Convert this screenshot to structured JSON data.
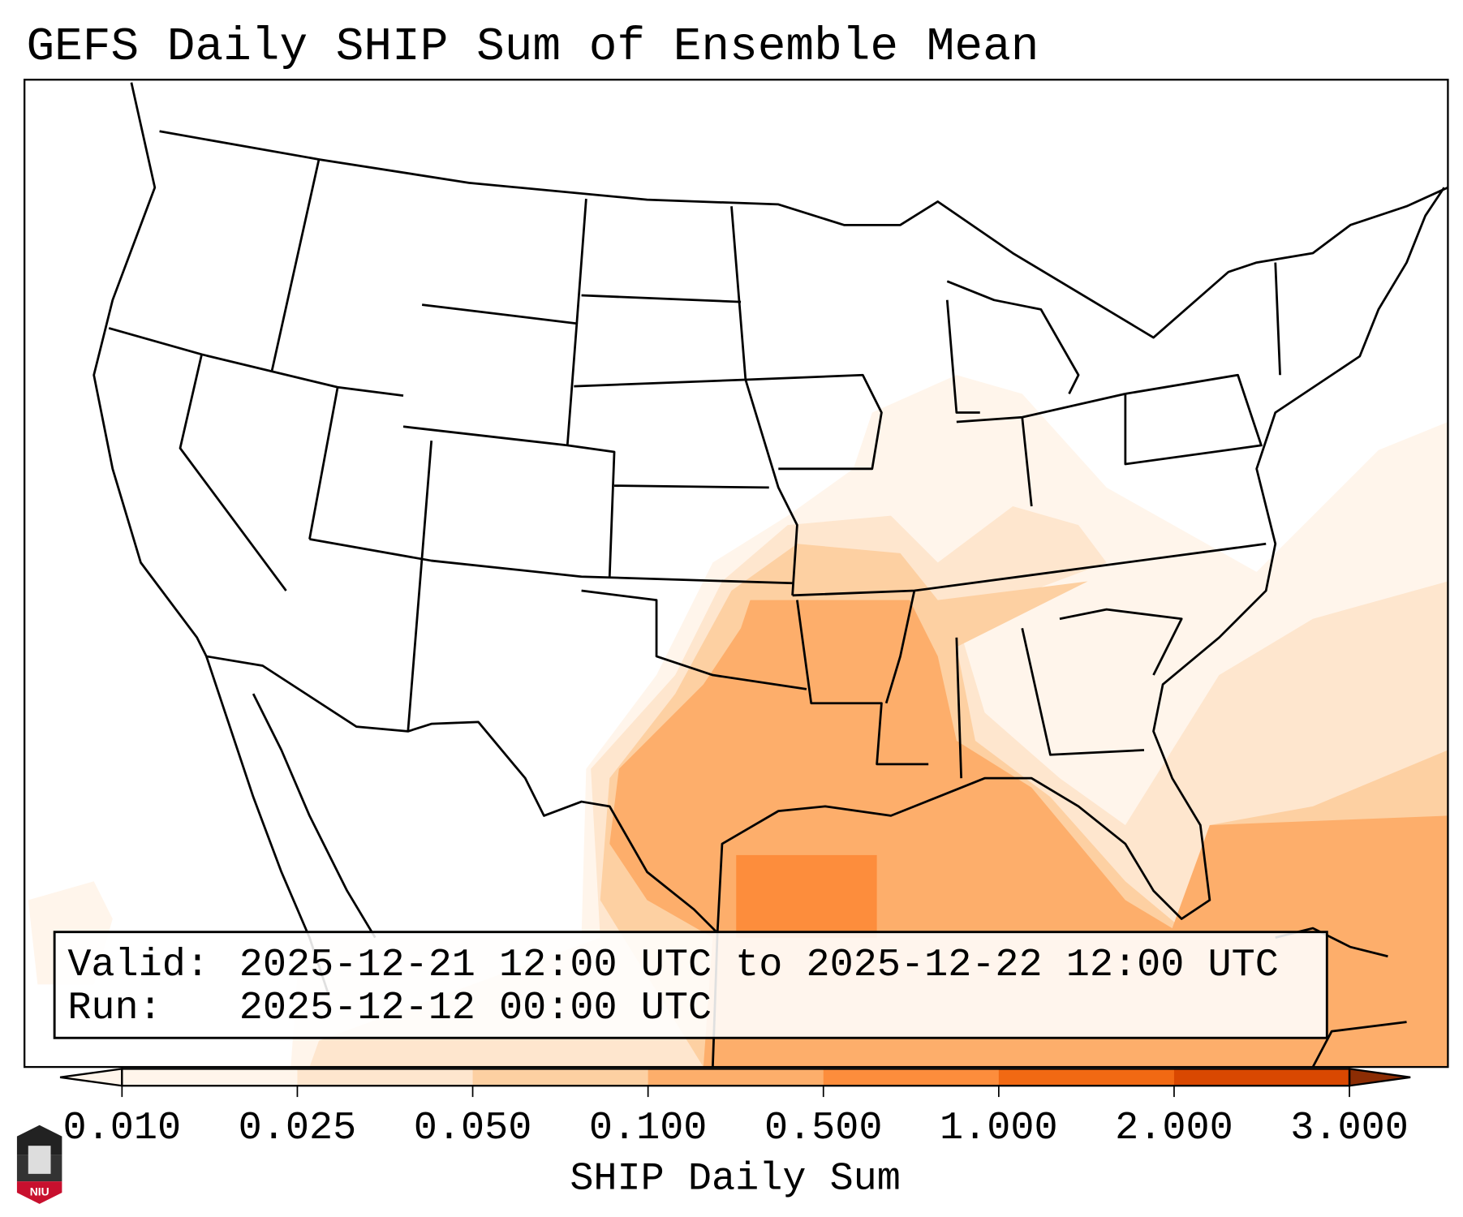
{
  "title": "GEFS Daily SHIP Sum of Ensemble Mean",
  "info": {
    "valid_label": "Valid:",
    "valid_value": "2025-12-21 12:00 UTC to 2025-12-22 12:00 UTC",
    "run_label": "Run:",
    "run_value": "2025-12-12 00:00 UTC"
  },
  "colorbar": {
    "label": "SHIP Daily Sum",
    "ticks": [
      "0.010",
      "0.025",
      "0.050",
      "0.100",
      "0.500",
      "1.000",
      "2.000",
      "3.000"
    ],
    "colors": [
      "#fff5eb",
      "#fee6ce",
      "#fdd0a2",
      "#fdae6b",
      "#fd8d3c",
      "#f16913",
      "#d94801",
      "#8c2d04"
    ],
    "extend": "both"
  },
  "logo": {
    "text": "NIU"
  }
}
